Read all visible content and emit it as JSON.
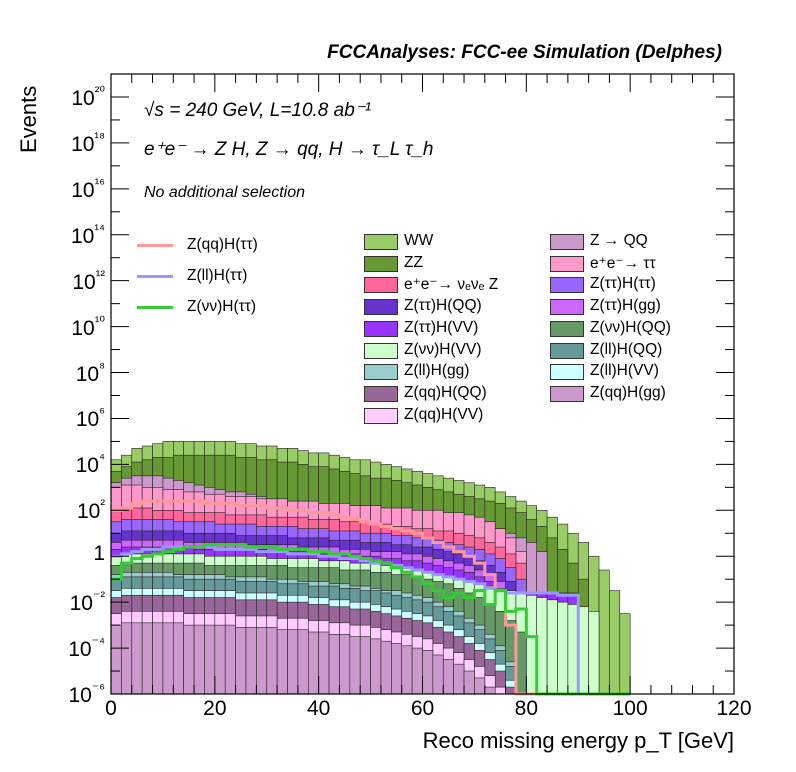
{
  "header": "FCCAnalyses: FCC-ee Simulation (Delphes)",
  "annotations": {
    "line1": "√s = 240 GeV, L=10.8 ab⁻¹",
    "line2": "e⁺e⁻ → Z H, Z → qq, H → τ_L τ_h",
    "line3": "No additional selection"
  },
  "chart_data": {
    "type": "area",
    "xlabel": "Reco missing energy p_T [GeV]",
    "ylabel": "Events",
    "xlim": [
      0,
      120
    ],
    "ylim": [
      1e-06,
      1e+21
    ],
    "yscale": "log",
    "x_ticks": [
      "0",
      "20",
      "40",
      "60",
      "80",
      "100",
      "120"
    ],
    "y_ticks": [
      "10⁻⁶",
      "10⁻⁴",
      "10⁻²",
      "1",
      "10²",
      "10⁴",
      "10⁶",
      "10⁸",
      "10¹⁰",
      "10¹²",
      "10¹⁴",
      "10¹⁶",
      "10¹⁸",
      "10²⁰"
    ],
    "bin_width": 2,
    "stack": [
      {
        "name": "WW",
        "color": "#99cc66",
        "top_log10": [
          4.2,
          4.4,
          4.7,
          4.8,
          4.9,
          5.0,
          5.0,
          5.0,
          5.0,
          5.0,
          5.0,
          5.0,
          4.9,
          4.9,
          4.8,
          4.8,
          4.7,
          4.7,
          4.6,
          4.5,
          4.5,
          4.4,
          4.3,
          4.2,
          4.2,
          4.1,
          4.0,
          3.9,
          3.8,
          3.7,
          3.6,
          3.5,
          3.4,
          3.3,
          3.2,
          3.1,
          3.0,
          2.8,
          2.6,
          2.4,
          2.2,
          2.0,
          1.7,
          1.4,
          1.0,
          0.6,
          0.0,
          -0.6,
          -1.5,
          -2.5
        ]
      },
      {
        "name": "ZZ",
        "color": "#669933",
        "top_log10": [
          3.7,
          3.9,
          4.1,
          4.2,
          4.3,
          4.3,
          4.4,
          4.4,
          4.4,
          4.4,
          4.4,
          4.4,
          4.3,
          4.3,
          4.2,
          4.2,
          4.1,
          4.1,
          4.0,
          3.9,
          3.9,
          3.8,
          3.7,
          3.6,
          3.5,
          3.4,
          3.4,
          3.3,
          3.2,
          3.1,
          3.0,
          2.9,
          2.8,
          2.7,
          2.6,
          2.5,
          2.4,
          2.3,
          2.1,
          1.9,
          1.6,
          1.3,
          0.8,
          0.3,
          -0.3,
          -1.0,
          -6,
          -6,
          -6,
          -6
        ]
      },
      {
        "name": "Z → QQ",
        "color": "#cc99cc",
        "top_log10": [
          3.2,
          3.4,
          3.5,
          3.5,
          3.5,
          3.4,
          3.3,
          3.2,
          3.1,
          3.0,
          2.9,
          2.8,
          2.8,
          2.7,
          2.6,
          2.5,
          2.5,
          2.4,
          2.4,
          2.3,
          2.3,
          2.2,
          2.2,
          2.1,
          2.1,
          2.0,
          2.0,
          1.9,
          1.9,
          1.8,
          1.8,
          1.7,
          1.6,
          1.6,
          1.5,
          1.4,
          1.3,
          1.2,
          1.0,
          0.8,
          0.6,
          0.2,
          -6,
          -6,
          -6,
          -6,
          -6,
          -6,
          -6,
          -6
        ]
      },
      {
        "name": "e⁺e⁻→ ττ",
        "color": "#ff99cc",
        "top_log10": [
          3.0,
          3.1,
          3.1,
          3.0,
          3.0,
          2.9,
          2.9,
          2.8,
          2.8,
          2.7,
          2.7,
          2.6,
          2.6,
          2.6,
          2.5,
          2.5,
          2.5,
          2.4,
          2.4,
          2.4,
          2.3,
          2.3,
          2.3,
          2.2,
          2.2,
          2.2,
          2.1,
          2.1,
          2.1,
          2.0,
          2.0,
          2.0,
          1.9,
          1.9,
          1.8,
          1.7,
          1.5,
          1.2,
          0.8,
          0.2,
          -6,
          -6,
          -6,
          -6,
          -6,
          -6,
          -6,
          -6,
          -6,
          -6
        ]
      },
      {
        "name": "e⁺e⁻→ νₑνₑ Z",
        "color": "#ff6699",
        "top_log10": [
          2.0,
          2.1,
          2.1,
          2.1,
          2.0,
          2.0,
          2.0,
          1.9,
          1.9,
          1.9,
          1.9,
          1.8,
          1.8,
          1.8,
          1.8,
          1.7,
          1.7,
          1.7,
          1.7,
          1.6,
          1.6,
          1.6,
          1.5,
          1.5,
          1.5,
          1.4,
          1.4,
          1.3,
          1.3,
          1.2,
          1.2,
          1.1,
          1.1,
          1.0,
          0.9,
          0.8,
          0.6,
          0.4,
          0.1,
          -0.3,
          -6,
          -6,
          -6,
          -6,
          -6,
          -6,
          -6,
          -6,
          -6,
          -6
        ]
      },
      {
        "name": "Z(ττ)H(ττ)",
        "color": "#9966ff",
        "top_log10": [
          1.5,
          1.6,
          1.6,
          1.6,
          1.6,
          1.6,
          1.5,
          1.5,
          1.5,
          1.5,
          1.4,
          1.4,
          1.4,
          1.4,
          1.3,
          1.3,
          1.3,
          1.3,
          1.2,
          1.2,
          1.2,
          1.1,
          1.1,
          1.1,
          1.0,
          1.0,
          1.0,
          0.9,
          0.9,
          0.8,
          0.8,
          0.7,
          0.6,
          0.5,
          0.4,
          0.3,
          0.1,
          -0.1,
          -0.5,
          -1.0,
          -6,
          -6,
          -6,
          -6,
          -6,
          -6,
          -6,
          -6,
          -6,
          -6
        ]
      },
      {
        "name": "Z(ττ)H(QQ)",
        "color": "#6633cc",
        "top_log10": [
          1.0,
          1.1,
          1.1,
          1.1,
          1.1,
          1.1,
          1.1,
          1.0,
          1.0,
          1.0,
          1.0,
          1.0,
          0.9,
          0.9,
          0.9,
          0.9,
          0.9,
          0.8,
          0.8,
          0.8,
          0.8,
          0.7,
          0.7,
          0.7,
          0.6,
          0.6,
          0.6,
          0.5,
          0.5,
          0.4,
          0.4,
          0.3,
          0.2,
          0.1,
          0.0,
          -0.2,
          -0.4,
          -0.7,
          -1.1,
          -1.6,
          -6,
          -6,
          -6,
          -6,
          -6,
          -6,
          -6,
          -6,
          -6,
          -6
        ]
      },
      {
        "name": "Z(ττ)H(gg)",
        "color": "#cc66ff",
        "top_log10": [
          0.6,
          0.7,
          0.7,
          0.7,
          0.7,
          0.7,
          0.7,
          0.6,
          0.6,
          0.6,
          0.6,
          0.6,
          0.6,
          0.5,
          0.5,
          0.5,
          0.5,
          0.5,
          0.4,
          0.4,
          0.4,
          0.4,
          0.3,
          0.3,
          0.3,
          0.2,
          0.2,
          0.2,
          0.1,
          0.1,
          0.0,
          -0.1,
          -0.2,
          -0.3,
          -0.4,
          -0.6,
          -0.8,
          -1.1,
          -1.6,
          -2.4,
          -6,
          -6,
          -6,
          -6,
          -6,
          -6,
          -6,
          -6,
          -6,
          -6
        ]
      },
      {
        "name": "Z(ττ)H(VV)",
        "color": "#9933ff",
        "top_log10": [
          0.3,
          0.4,
          0.4,
          0.4,
          0.4,
          0.4,
          0.4,
          0.4,
          0.3,
          0.3,
          0.3,
          0.3,
          0.3,
          0.3,
          0.3,
          0.2,
          0.2,
          0.2,
          0.2,
          0.2,
          0.1,
          0.1,
          0.1,
          0.1,
          0.0,
          0.0,
          -0.1,
          -0.1,
          -0.2,
          -0.2,
          -0.3,
          -0.4,
          -0.5,
          -0.6,
          -0.7,
          -0.9,
          -1.1,
          -1.4,
          -1.6,
          -1.6,
          -1.6,
          -1.6,
          -1.6,
          -1.6,
          -1.6,
          -6,
          -6,
          -6,
          -6,
          -6
        ]
      },
      {
        "name": "Z(νν)H(VV)",
        "color": "#ccffcc",
        "top_log10": [
          0.0,
          0.1,
          0.1,
          0.1,
          0.1,
          0.1,
          0.1,
          0.1,
          0.1,
          0.0,
          0.0,
          0.0,
          0.0,
          0.0,
          0.0,
          -0.1,
          -0.1,
          -0.1,
          -0.1,
          -0.1,
          -0.2,
          -0.2,
          -0.2,
          -0.3,
          -0.3,
          -0.3,
          -0.4,
          -0.4,
          -0.5,
          -0.6,
          -0.7,
          -0.8,
          -0.9,
          -1.0,
          -1.1,
          -1.2,
          -1.3,
          -1.4,
          -1.5,
          -1.6,
          -1.7,
          -1.8,
          -1.9,
          -2.0,
          -2.1,
          -2.2,
          -2.4,
          -6,
          -6,
          -6
        ]
      },
      {
        "name": "Z(νν)H(QQ)",
        "color": "#669966",
        "top_log10": [
          -0.4,
          -0.3,
          -0.3,
          -0.3,
          -0.3,
          -0.3,
          -0.3,
          -0.3,
          -0.3,
          -0.4,
          -0.4,
          -0.4,
          -0.4,
          -0.4,
          -0.4,
          -0.4,
          -0.4,
          -0.5,
          -0.5,
          -0.5,
          -0.5,
          -0.5,
          -0.6,
          -0.6,
          -0.6,
          -0.7,
          -0.7,
          -0.8,
          -0.8,
          -0.9,
          -1.0,
          -1.1,
          -1.2,
          -1.4,
          -1.6,
          -1.8,
          -2.1,
          -2.4,
          -2.8,
          -3.3,
          -6,
          -6,
          -6,
          -6,
          -6,
          -6,
          -6,
          -6,
          -6,
          -6
        ]
      },
      {
        "name": "Z(ll)H(gg)",
        "color": "#99cccc",
        "top_log10": [
          -0.8,
          -0.7,
          -0.7,
          -0.7,
          -0.7,
          -0.7,
          -0.8,
          -0.8,
          -0.8,
          -0.8,
          -0.8,
          -0.9,
          -0.9,
          -0.9,
          -0.9,
          -1.0,
          -1.0,
          -1.0,
          -1.1,
          -1.1,
          -1.1,
          -1.2,
          -1.2,
          -1.3,
          -1.3,
          -1.4,
          -1.5,
          -1.5,
          -1.6,
          -1.7,
          -1.8,
          -2.0,
          -2.2,
          -2.4,
          -2.7,
          -3.0,
          -3.4,
          -3.9,
          -4.6,
          -6,
          -6,
          -6,
          -6,
          -6,
          -6,
          -6,
          -6,
          -6,
          -6,
          -6
        ]
      },
      {
        "name": "Z(ll)H(QQ)",
        "color": "#669999",
        "top_log10": [
          -1.0,
          -0.9,
          -0.9,
          -0.9,
          -0.9,
          -0.9,
          -0.9,
          -1.0,
          -1.0,
          -1.0,
          -1.0,
          -1.0,
          -1.1,
          -1.1,
          -1.1,
          -1.1,
          -1.2,
          -1.2,
          -1.2,
          -1.3,
          -1.3,
          -1.3,
          -1.4,
          -1.4,
          -1.5,
          -1.5,
          -1.6,
          -1.7,
          -1.8,
          -1.9,
          -2.0,
          -2.2,
          -2.4,
          -2.6,
          -2.9,
          -3.2,
          -3.6,
          -4.1,
          -4.8,
          -6,
          -6,
          -6,
          -6,
          -6,
          -6,
          -6,
          -6,
          -6,
          -6,
          -6
        ]
      },
      {
        "name": "Z(ll)H(VV)",
        "color": "#ccffff",
        "top_log10": [
          -1.5,
          -1.4,
          -1.4,
          -1.4,
          -1.4,
          -1.4,
          -1.4,
          -1.5,
          -1.5,
          -1.5,
          -1.5,
          -1.5,
          -1.6,
          -1.6,
          -1.6,
          -1.6,
          -1.7,
          -1.7,
          -1.7,
          -1.8,
          -1.8,
          -1.9,
          -1.9,
          -2.0,
          -2.0,
          -2.1,
          -2.2,
          -2.3,
          -2.4,
          -2.5,
          -2.6,
          -2.8,
          -3.0,
          -3.2,
          -3.5,
          -3.8,
          -4.2,
          -4.7,
          -5.4,
          -6,
          -6,
          -6,
          -6,
          -6,
          -6,
          -6,
          -6,
          -6,
          -6,
          -6
        ]
      },
      {
        "name": "Z(qq)H(QQ)",
        "color": "#996699",
        "top_log10": [
          -1.8,
          -1.7,
          -1.7,
          -1.7,
          -1.7,
          -1.7,
          -1.7,
          -1.8,
          -1.8,
          -1.8,
          -1.8,
          -1.8,
          -1.9,
          -1.9,
          -1.9,
          -1.9,
          -2.0,
          -2.0,
          -2.0,
          -2.1,
          -2.1,
          -2.2,
          -2.2,
          -2.3,
          -2.3,
          -2.4,
          -2.5,
          -2.6,
          -2.7,
          -2.8,
          -2.9,
          -3.1,
          -3.3,
          -3.5,
          -3.8,
          -4.1,
          -4.5,
          -5.0,
          -5.7,
          -6,
          -6,
          -6,
          -6,
          -6,
          -6,
          -6,
          -6,
          -6,
          -6,
          -6
        ]
      },
      {
        "name": "Z(qq)H(VV)",
        "color": "#ffccff",
        "top_log10": [
          -2.5,
          -2.4,
          -2.4,
          -2.4,
          -2.4,
          -2.4,
          -2.4,
          -2.5,
          -2.5,
          -2.5,
          -2.5,
          -2.5,
          -2.6,
          -2.6,
          -2.6,
          -2.6,
          -2.7,
          -2.7,
          -2.7,
          -2.8,
          -2.8,
          -2.9,
          -2.9,
          -3.0,
          -3.0,
          -3.1,
          -3.2,
          -3.3,
          -3.4,
          -3.5,
          -3.6,
          -3.8,
          -4.0,
          -4.2,
          -4.5,
          -4.8,
          -5.2,
          -5.7,
          -6,
          -6,
          -6,
          -6,
          -6,
          -6,
          -6,
          -6,
          -6,
          -6,
          -6,
          -6
        ]
      },
      {
        "name": "Z(qq)H(gg)",
        "color": "#cc99cc",
        "top_log10": [
          -3.0,
          -2.9,
          -2.9,
          -2.9,
          -2.9,
          -2.9,
          -2.9,
          -3.0,
          -3.0,
          -3.0,
          -3.0,
          -3.0,
          -3.1,
          -3.1,
          -3.1,
          -3.1,
          -3.2,
          -3.2,
          -3.2,
          -3.3,
          -3.3,
          -3.4,
          -3.4,
          -3.5,
          -3.5,
          -3.6,
          -3.7,
          -3.8,
          -3.9,
          -4.0,
          -4.1,
          -4.3,
          -4.5,
          -4.7,
          -5.0,
          -5.3,
          -5.7,
          -6,
          -6,
          -6,
          -6,
          -6,
          -6,
          -6,
          -6,
          -6,
          -6,
          -6,
          -6,
          -6
        ]
      }
    ],
    "series": [
      {
        "name": "Z(qq)H(ττ)",
        "color": "#ff9999",
        "log10": [
          2.0,
          2.1,
          2.3,
          2.4,
          2.4,
          2.4,
          2.4,
          2.4,
          2.4,
          2.3,
          2.3,
          2.3,
          2.2,
          2.2,
          2.2,
          2.1,
          2.1,
          2.0,
          2.0,
          1.9,
          1.9,
          1.8,
          1.7,
          1.6,
          1.5,
          1.4,
          1.3,
          1.2,
          1.1,
          1.0,
          0.8,
          0.6,
          0.4,
          0.2,
          0.0,
          -0.3,
          -0.8,
          -1.5,
          -3.0,
          -6,
          -6,
          -6,
          -6,
          -6,
          -6,
          -6,
          -6,
          -6,
          -6,
          -6
        ]
      },
      {
        "name": "Z(ll)H(ττ)",
        "color": "#9999ff",
        "log10": [
          0.0,
          0.1,
          0.2,
          0.3,
          0.3,
          0.4,
          0.4,
          0.4,
          0.4,
          0.4,
          0.3,
          0.3,
          0.3,
          0.3,
          0.2,
          0.2,
          0.2,
          0.1,
          0.1,
          0.1,
          0.0,
          0.0,
          -0.1,
          -0.1,
          -0.2,
          -0.3,
          -0.3,
          -0.4,
          -0.5,
          -0.6,
          -0.7,
          -0.8,
          -0.9,
          -1.0,
          -1.1,
          -1.2,
          -1.4,
          -1.5,
          -1.6,
          -1.6,
          -1.6,
          -1.6,
          -1.6,
          -1.7,
          -1.7,
          -6,
          -6,
          -6,
          -6,
          -6
        ]
      },
      {
        "name": "Z(νν)H(ττ)",
        "color": "#33cc33",
        "log10": [
          -1.0,
          -0.3,
          -0.1,
          0.0,
          0.1,
          0.2,
          0.3,
          0.4,
          0.4,
          0.5,
          0.5,
          0.5,
          0.5,
          0.4,
          0.4,
          0.4,
          0.3,
          0.3,
          0.3,
          0.2,
          0.2,
          0.1,
          0.1,
          0.0,
          -0.1,
          -0.2,
          -0.3,
          -0.5,
          -0.7,
          -0.9,
          -1.2,
          -1.5,
          -1.8,
          -1.6,
          -1.8,
          -1.5,
          -2.1,
          -1.5,
          -2.4,
          -2.3,
          -3.5,
          -6,
          -6,
          -6,
          -6,
          -6,
          -6,
          -6,
          -6,
          -6
        ]
      }
    ],
    "legend_lines": [
      "Z(qq)H(ττ)",
      "Z(ll)H(ττ)",
      "Z(νν)H(ττ)"
    ],
    "legend_col1": [
      "WW",
      "ZZ",
      "e⁺e⁻→ νₑνₑ Z",
      "Z(ττ)H(QQ)",
      "Z(ττ)H(VV)",
      "Z(νν)H(VV)",
      "Z(ll)H(gg)",
      "Z(qq)H(QQ)",
      "Z(qq)H(VV)"
    ],
    "legend_col2": [
      "Z → QQ",
      "e⁺e⁻→ ττ",
      "Z(ττ)H(ττ)",
      "Z(ττ)H(gg)",
      "Z(νν)H(QQ)",
      "Z(ll)H(QQ)",
      "Z(ll)H(VV)",
      "Z(qq)H(gg)"
    ],
    "grid": false,
    "legend_placement": "top-right"
  }
}
